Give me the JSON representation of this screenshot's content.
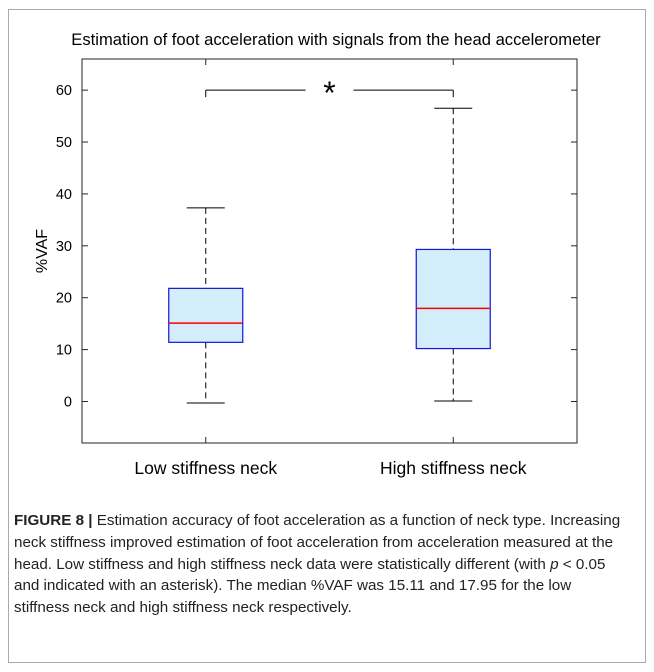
{
  "chart_data": {
    "type": "boxplot",
    "title": "Estimation of foot acceleration with signals from the head accelerometer",
    "xlabel": "",
    "ylabel": "%VAF",
    "ylim": [
      -8,
      66
    ],
    "yticks": [
      0,
      10,
      20,
      30,
      40,
      50,
      60
    ],
    "categories": [
      "Low stiffness neck",
      "High stiffness neck"
    ],
    "boxes": [
      {
        "category": "Low stiffness neck",
        "whisker_low": -0.3,
        "q1": 11.4,
        "median": 15.11,
        "q3": 21.8,
        "whisker_high": 37.3
      },
      {
        "category": "High stiffness neck",
        "whisker_low": 0.1,
        "q1": 10.2,
        "median": 17.95,
        "q3": 29.3,
        "whisker_high": 56.5
      }
    ],
    "significance": {
      "y": 60,
      "marker": "*"
    },
    "grid": false,
    "colors": {
      "box_fill": "#d3eefa",
      "box_edge": "#1515d9",
      "median": "#ff0000",
      "whisker": "#000000"
    }
  },
  "caption": {
    "label": "FIGURE 8 |",
    "text_before_p": " Estimation accuracy of foot acceleration as a function of neck type. Increasing neck stiffness improved estimation of foot acceleration from acceleration measured at the head. Low stiffness and high stiffness neck data were statistically different (with ",
    "p_symbol": "p",
    "text_after_p": " < 0.05 and indicated with an asterisk). The median %VAF was 15.11 and 17.95 for the low stiffness neck and high stiffness neck respectively."
  }
}
